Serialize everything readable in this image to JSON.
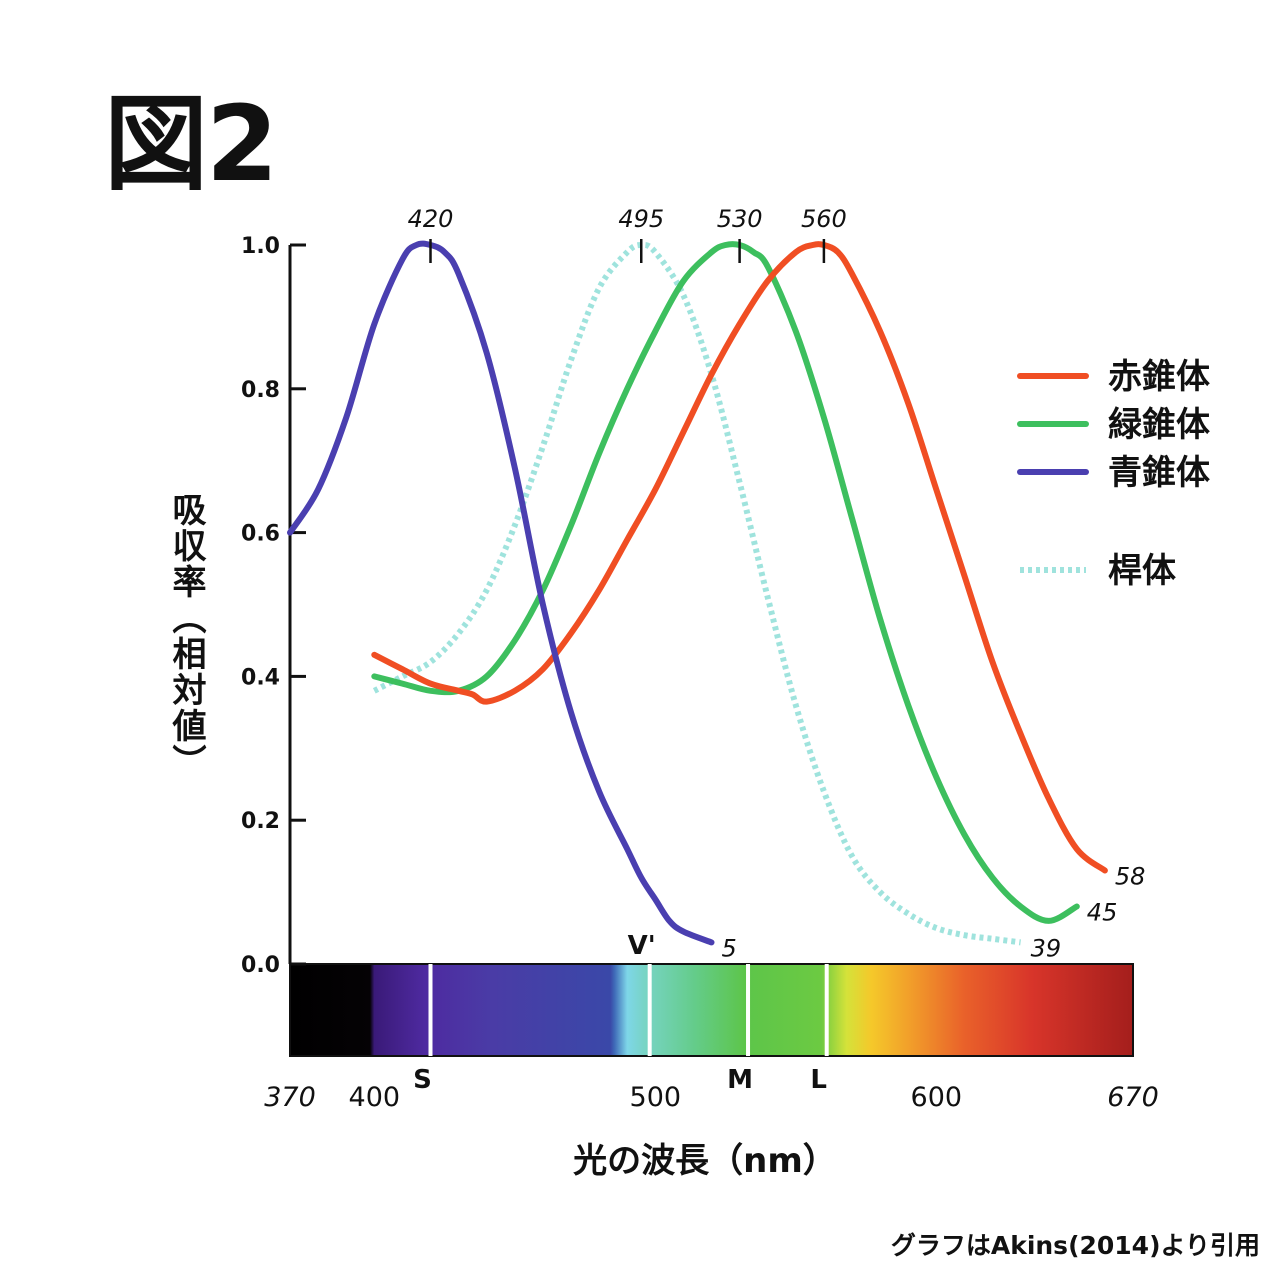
{
  "figure_label": "図2",
  "source_note": "グラフはAkins(2014)より引用",
  "chart_data": {
    "type": "line",
    "title": "",
    "xlabel": "光の波長（nm）",
    "ylabel": "吸収率（相対値）",
    "xlim": [
      370,
      670
    ],
    "ylim": [
      0.0,
      1.0
    ],
    "x_ticks": [
      {
        "value": 370,
        "label": "370",
        "italic": true
      },
      {
        "value": 400,
        "label": "400",
        "italic": false
      },
      {
        "value": 500,
        "label": "500",
        "italic": false
      },
      {
        "value": 600,
        "label": "600",
        "italic": false
      },
      {
        "value": 670,
        "label": "670",
        "italic": true
      }
    ],
    "y_ticks": [
      {
        "value": 0.0,
        "label": "0.0"
      },
      {
        "value": 0.2,
        "label": "0.2"
      },
      {
        "value": 0.4,
        "label": "0.4"
      },
      {
        "value": 0.6,
        "label": "0.6"
      },
      {
        "value": 0.8,
        "label": "0.8"
      },
      {
        "value": 1.0,
        "label": "1.0"
      }
    ],
    "peaks": [
      {
        "x": 420,
        "label": "420"
      },
      {
        "x": 495,
        "label": "495"
      },
      {
        "x": 530,
        "label": "530"
      },
      {
        "x": 560,
        "label": "560"
      }
    ],
    "spectrum_markers": [
      {
        "x": 420,
        "label": "S"
      },
      {
        "x": 498,
        "label": "V'"
      },
      {
        "x": 533,
        "label": "M"
      },
      {
        "x": 561,
        "label": "L"
      }
    ],
    "legend_position": "right",
    "series": [
      {
        "name": "赤錐体",
        "color": "#f04e23",
        "style": "solid",
        "end_label": "58",
        "x": [
          400,
          410,
          420,
          430,
          435,
          440,
          450,
          460,
          470,
          480,
          490,
          500,
          510,
          520,
          530,
          540,
          550,
          556,
          560,
          565,
          570,
          580,
          590,
          600,
          610,
          620,
          630,
          640,
          650,
          660
        ],
        "y": [
          0.43,
          0.41,
          0.39,
          0.38,
          0.375,
          0.365,
          0.38,
          0.41,
          0.46,
          0.52,
          0.59,
          0.66,
          0.74,
          0.82,
          0.89,
          0.95,
          0.99,
          1.0,
          1.0,
          0.99,
          0.96,
          0.88,
          0.78,
          0.66,
          0.54,
          0.42,
          0.32,
          0.23,
          0.16,
          0.13
        ]
      },
      {
        "name": "緑錐体",
        "color": "#3dbf5e",
        "style": "solid",
        "end_label": "45",
        "x": [
          400,
          410,
          420,
          430,
          440,
          450,
          460,
          470,
          480,
          490,
          500,
          510,
          520,
          525,
          530,
          535,
          540,
          550,
          560,
          570,
          580,
          590,
          600,
          610,
          620,
          630,
          640,
          650
        ],
        "y": [
          0.4,
          0.39,
          0.38,
          0.38,
          0.4,
          0.45,
          0.52,
          0.61,
          0.71,
          0.8,
          0.88,
          0.95,
          0.99,
          1.0,
          1.0,
          0.99,
          0.97,
          0.88,
          0.76,
          0.62,
          0.48,
          0.36,
          0.26,
          0.18,
          0.12,
          0.08,
          0.06,
          0.08
        ]
      },
      {
        "name": "青錐体",
        "color": "#4a3fb0",
        "style": "solid",
        "end_label": "5",
        "x": [
          370,
          380,
          390,
          400,
          410,
          415,
          420,
          425,
          430,
          440,
          450,
          460,
          470,
          480,
          490,
          495,
          500,
          505,
          510,
          520
        ],
        "y": [
          0.6,
          0.66,
          0.76,
          0.89,
          0.98,
          1.0,
          1.0,
          0.99,
          0.96,
          0.85,
          0.69,
          0.5,
          0.35,
          0.24,
          0.16,
          0.12,
          0.09,
          0.06,
          0.045,
          0.03
        ]
      },
      {
        "name": "桿体",
        "color": "#9fe3dd",
        "style": "dotted",
        "end_label": "39",
        "x": [
          400,
          410,
          420,
          430,
          440,
          450,
          460,
          470,
          480,
          490,
          495,
          500,
          510,
          520,
          530,
          540,
          550,
          560,
          570,
          580,
          590,
          600,
          610,
          620,
          630
        ],
        "y": [
          0.38,
          0.4,
          0.42,
          0.46,
          0.52,
          0.61,
          0.72,
          0.84,
          0.94,
          0.99,
          1.0,
          0.99,
          0.93,
          0.82,
          0.67,
          0.51,
          0.36,
          0.24,
          0.15,
          0.1,
          0.07,
          0.05,
          0.04,
          0.035,
          0.03
        ]
      }
    ]
  }
}
